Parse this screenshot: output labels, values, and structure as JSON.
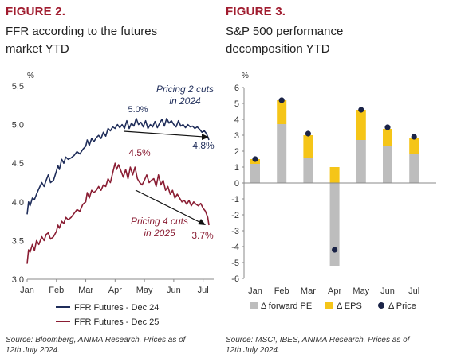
{
  "left": {
    "figure_label": "FIGURE 2.",
    "title_line1": "FFR according to the futures",
    "title_line2": "market YTD",
    "source_line1": "Source: Bloomberg, ANIMA Research. Prices as of",
    "source_line2": "12th July 2024."
  },
  "right": {
    "figure_label": "FIGURE 3.",
    "title_line1": "S&P 500 performance",
    "title_line2": "decomposition YTD",
    "source_line1": "Source: MSCI, IBES, ANIMA Research. Prices as of",
    "source_line2": "12th July 2024."
  },
  "colors": {
    "accent": "#a01b2e",
    "navy": "#1f2d5a",
    "maroon": "#8a1d33",
    "gray_bar": "#bdbdbd",
    "yellow_bar": "#f5c518",
    "price_dot": "#1a2347"
  },
  "chart_data": [
    {
      "type": "line",
      "ylabel": "%",
      "ylim": [
        3.0,
        5.5
      ],
      "yticks": [
        "3,0",
        "3,5",
        "4,0",
        "4,5",
        "5,0",
        "5,5"
      ],
      "ytick_values": [
        3.0,
        3.5,
        4.0,
        4.5,
        5.0,
        5.5
      ],
      "xticks": [
        "Jan",
        "Feb",
        "Mar",
        "Apr",
        "May",
        "Jun",
        "Jul"
      ],
      "grid": false,
      "legend_position": "bottom-left",
      "series": [
        {
          "name": "FFR Futures - Dec 24",
          "color": "#1f2d5a",
          "points": [
            [
              0,
              3.84
            ],
            [
              0.05,
              4.0
            ],
            [
              0.1,
              3.95
            ],
            [
              0.18,
              4.05
            ],
            [
              0.25,
              4.03
            ],
            [
              0.32,
              4.1
            ],
            [
              0.4,
              4.17
            ],
            [
              0.5,
              4.25
            ],
            [
              0.58,
              4.2
            ],
            [
              0.65,
              4.28
            ],
            [
              0.72,
              4.35
            ],
            [
              0.8,
              4.25
            ],
            [
              0.9,
              4.28
            ],
            [
              1.0,
              4.4
            ],
            [
              1.05,
              4.47
            ],
            [
              1.1,
              4.42
            ],
            [
              1.18,
              4.55
            ],
            [
              1.25,
              4.5
            ],
            [
              1.32,
              4.58
            ],
            [
              1.4,
              4.55
            ],
            [
              1.5,
              4.57
            ],
            [
              1.6,
              4.6
            ],
            [
              1.7,
              4.65
            ],
            [
              1.8,
              4.62
            ],
            [
              1.9,
              4.68
            ],
            [
              2.0,
              4.72
            ],
            [
              2.05,
              4.8
            ],
            [
              2.12,
              4.73
            ],
            [
              2.2,
              4.82
            ],
            [
              2.28,
              4.78
            ],
            [
              2.36,
              4.83
            ],
            [
              2.44,
              4.86
            ],
            [
              2.52,
              4.82
            ],
            [
              2.6,
              4.9
            ],
            [
              2.68,
              4.85
            ],
            [
              2.76,
              4.95
            ],
            [
              2.84,
              4.92
            ],
            [
              2.92,
              4.97
            ],
            [
              3.0,
              4.95
            ],
            [
              3.08,
              5.0
            ],
            [
              3.16,
              4.96
            ],
            [
              3.24,
              5.0
            ],
            [
              3.32,
              4.95
            ],
            [
              3.4,
              5.05
            ],
            [
              3.48,
              4.95
            ],
            [
              3.56,
              5.02
            ],
            [
              3.64,
              4.98
            ],
            [
              3.72,
              5.08
            ],
            [
              3.8,
              5.0
            ],
            [
              3.88,
              5.03
            ],
            [
              3.96,
              4.97
            ],
            [
              4.04,
              5.05
            ],
            [
              4.12,
              4.95
            ],
            [
              4.2,
              5.0
            ],
            [
              4.28,
              4.97
            ],
            [
              4.36,
              5.04
            ],
            [
              4.44,
              4.96
            ],
            [
              4.52,
              5.02
            ],
            [
              4.6,
              5.07
            ],
            [
              4.68,
              4.98
            ],
            [
              4.76,
              5.08
            ],
            [
              4.84,
              5.02
            ],
            [
              4.92,
              5.05
            ],
            [
              5.0,
              5.0
            ],
            [
              5.08,
              4.97
            ],
            [
              5.16,
              5.05
            ],
            [
              5.24,
              4.98
            ],
            [
              5.32,
              5.0
            ],
            [
              5.4,
              4.96
            ],
            [
              5.48,
              5.0
            ],
            [
              5.56,
              4.97
            ],
            [
              5.64,
              4.98
            ],
            [
              5.72,
              4.95
            ],
            [
              5.8,
              4.97
            ],
            [
              5.88,
              4.94
            ],
            [
              5.96,
              4.9
            ],
            [
              6.04,
              4.92
            ],
            [
              6.12,
              4.88
            ],
            [
              6.2,
              4.8
            ]
          ]
        },
        {
          "name": "FFR Futures - Dec 25",
          "color": "#8a1d33",
          "points": [
            [
              0,
              3.2
            ],
            [
              0.05,
              3.38
            ],
            [
              0.1,
              3.35
            ],
            [
              0.18,
              3.45
            ],
            [
              0.25,
              3.37
            ],
            [
              0.32,
              3.5
            ],
            [
              0.4,
              3.45
            ],
            [
              0.5,
              3.55
            ],
            [
              0.58,
              3.5
            ],
            [
              0.65,
              3.58
            ],
            [
              0.72,
              3.6
            ],
            [
              0.8,
              3.52
            ],
            [
              0.9,
              3.55
            ],
            [
              1.0,
              3.62
            ],
            [
              1.05,
              3.7
            ],
            [
              1.1,
              3.66
            ],
            [
              1.18,
              3.75
            ],
            [
              1.25,
              3.72
            ],
            [
              1.32,
              3.8
            ],
            [
              1.4,
              3.77
            ],
            [
              1.5,
              3.8
            ],
            [
              1.6,
              3.85
            ],
            [
              1.7,
              3.9
            ],
            [
              1.8,
              3.88
            ],
            [
              1.9,
              3.97
            ],
            [
              2.0,
              4.0
            ],
            [
              2.05,
              4.12
            ],
            [
              2.12,
              4.05
            ],
            [
              2.2,
              4.15
            ],
            [
              2.28,
              4.12
            ],
            [
              2.36,
              4.15
            ],
            [
              2.44,
              4.2
            ],
            [
              2.52,
              4.15
            ],
            [
              2.6,
              4.22
            ],
            [
              2.68,
              4.2
            ],
            [
              2.76,
              4.3
            ],
            [
              2.84,
              4.25
            ],
            [
              2.92,
              4.38
            ],
            [
              3.0,
              4.5
            ],
            [
              3.05,
              4.42
            ],
            [
              3.12,
              4.48
            ],
            [
              3.2,
              4.4
            ],
            [
              3.28,
              4.32
            ],
            [
              3.36,
              4.42
            ],
            [
              3.44,
              4.3
            ],
            [
              3.52,
              4.45
            ],
            [
              3.6,
              4.35
            ],
            [
              3.68,
              4.45
            ],
            [
              3.76,
              4.3
            ],
            [
              3.84,
              4.25
            ],
            [
              3.92,
              4.22
            ],
            [
              4.0,
              4.28
            ],
            [
              4.08,
              4.35
            ],
            [
              4.16,
              4.25
            ],
            [
              4.24,
              4.28
            ],
            [
              4.32,
              4.3
            ],
            [
              4.4,
              4.2
            ],
            [
              4.48,
              4.35
            ],
            [
              4.56,
              4.22
            ],
            [
              4.64,
              4.28
            ],
            [
              4.72,
              4.15
            ],
            [
              4.8,
              4.2
            ],
            [
              4.88,
              4.1
            ],
            [
              4.96,
              4.15
            ],
            [
              5.04,
              4.05
            ],
            [
              5.12,
              4.1
            ],
            [
              5.2,
              4.05
            ],
            [
              5.28,
              4.0
            ],
            [
              5.36,
              4.02
            ],
            [
              5.44,
              3.97
            ],
            [
              5.52,
              4.02
            ],
            [
              5.6,
              3.95
            ],
            [
              5.68,
              4.0
            ],
            [
              5.76,
              3.97
            ],
            [
              5.84,
              3.95
            ],
            [
              5.92,
              3.98
            ],
            [
              6.0,
              3.92
            ],
            [
              6.08,
              3.88
            ],
            [
              6.16,
              3.8
            ],
            [
              6.2,
              3.7
            ]
          ]
        }
      ],
      "annotations": [
        {
          "text_line1": "Pricing 2 cuts",
          "text_line2": "in 2024"
        },
        {
          "text": "5.0%"
        },
        {
          "text": "4.8%"
        },
        {
          "text": "4.5%"
        },
        {
          "text_line1": "Pricing 4 cuts",
          "text_line2": "in 2025"
        },
        {
          "text": "3.7%"
        }
      ]
    },
    {
      "type": "bar",
      "stacked": true,
      "ylabel": "%",
      "ylim": [
        -6,
        6
      ],
      "yticks": [
        "-6",
        "-5",
        "-4",
        "-3",
        "-2",
        "-1",
        "0",
        "1",
        "2",
        "3",
        "4",
        "5",
        "6"
      ],
      "categories": [
        "Jan",
        "Feb",
        "Mar",
        "Apr",
        "May",
        "Jun",
        "Jul"
      ],
      "grid": false,
      "legend_position": "bottom",
      "series": [
        {
          "name": "Δ forward PE",
          "color": "#bdbdbd",
          "values": [
            1.2,
            3.7,
            1.6,
            -5.2,
            2.7,
            2.3,
            1.8
          ]
        },
        {
          "name": "Δ EPS",
          "color": "#f5c518",
          "values": [
            0.3,
            1.5,
            1.4,
            1.0,
            1.9,
            1.1,
            1.0
          ]
        },
        {
          "name": "Δ Price",
          "color": "#1a2347",
          "type": "dot",
          "values": [
            1.5,
            5.2,
            3.1,
            -4.2,
            4.6,
            3.5,
            2.9
          ]
        }
      ]
    }
  ]
}
